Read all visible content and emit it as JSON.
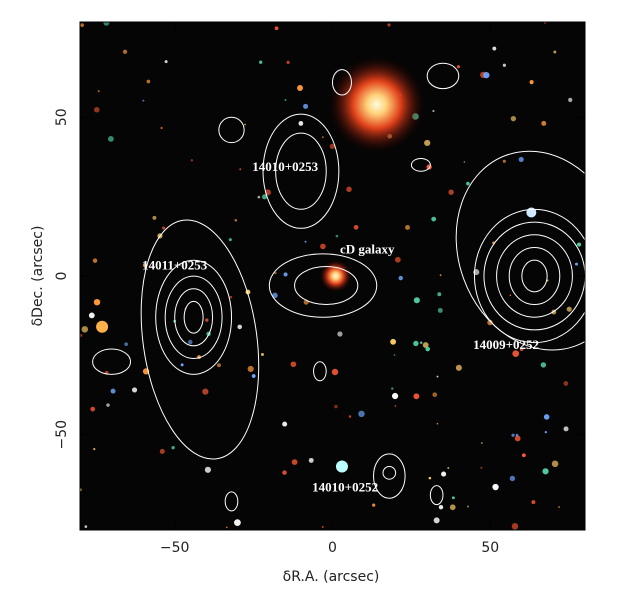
{
  "chart_data": {
    "type": "image",
    "xlabel": "δR.A. (arcsec)",
    "ylabel": "δDec. (arcsec)",
    "xlim": [
      -80,
      80
    ],
    "ylim": [
      -80,
      80
    ],
    "xticks": [
      {
        "value": -50,
        "label": "−50"
      },
      0,
      50
    ],
    "yticks": [
      {
        "value": -50,
        "label": "−50"
      },
      0,
      50
    ],
    "annotations": [
      "14010+0253",
      "cD galaxy",
      "14011+0253",
      "14009+0252",
      "14010+0252"
    ]
  }
}
